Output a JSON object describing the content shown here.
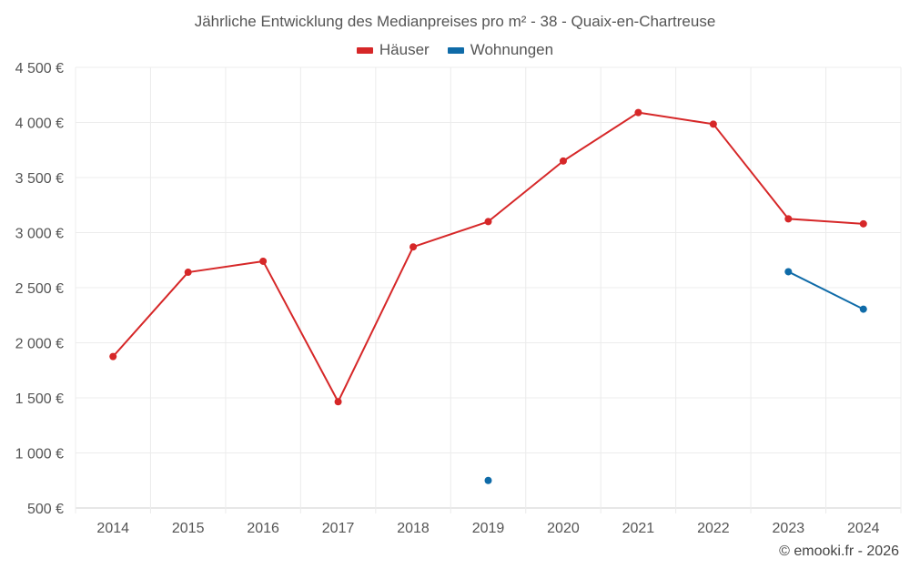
{
  "chart_data": {
    "type": "line",
    "title": "Jährliche Entwicklung des Medianpreises pro m² - 38 - Quaix-en-Chartreuse",
    "categories": [
      "2014",
      "2015",
      "2016",
      "2017",
      "2018",
      "2019",
      "2020",
      "2021",
      "2022",
      "2023",
      "2024"
    ],
    "y_ticks": [
      500,
      1000,
      1500,
      2000,
      2500,
      3000,
      3500,
      4000,
      4500
    ],
    "y_tick_labels": [
      "500 €",
      "1 000 €",
      "1 500 €",
      "2 000 €",
      "2 500 €",
      "3 000 €",
      "3 500 €",
      "4 000 €",
      "4 500 €"
    ],
    "ylim": [
      500,
      4500
    ],
    "grid": true,
    "legend_position": "top-center",
    "series": [
      {
        "name": "Häuser",
        "color": "#d62728",
        "values": [
          1875,
          2640,
          2740,
          1465,
          2870,
          3100,
          3650,
          4090,
          3985,
          3125,
          3080
        ]
      },
      {
        "name": "Wohnungen",
        "color": "#0f6ba8",
        "values": [
          null,
          null,
          null,
          null,
          null,
          750,
          null,
          null,
          null,
          2645,
          2305
        ]
      }
    ],
    "credit": "© emooki.fr - 2026"
  }
}
